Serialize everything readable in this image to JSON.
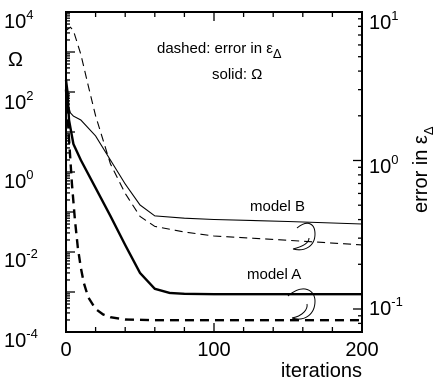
{
  "chart_data": {
    "type": "line",
    "title": "",
    "xlabel": "iterations",
    "ylabel_left": "Ω",
    "ylabel_right": "error in ε",
    "ylabel_right_subscript": "Δ",
    "xlim": [
      0,
      200
    ],
    "ylim_left": [
      0.0001,
      10000
    ],
    "ylim_right": [
      0.07,
      10
    ],
    "yscale_left": "log",
    "yscale_right": "log",
    "grid": false,
    "x_ticks": [
      0,
      100,
      200
    ],
    "y_left_ticks": [
      {
        "base": "10",
        "exp": "-4",
        "value": 0.0001
      },
      {
        "base": "10",
        "exp": "-2",
        "value": 0.01
      },
      {
        "base": "10",
        "exp": "0",
        "value": 1
      },
      {
        "base": "10",
        "exp": "2",
        "value": 100
      },
      {
        "base": "10",
        "exp": "4",
        "value": 10000
      }
    ],
    "y_right_ticks": [
      {
        "base": "10",
        "exp": "-1",
        "value": 0.1
      },
      {
        "base": "10",
        "exp": "0",
        "value": 1
      },
      {
        "base": "10",
        "exp": "1",
        "value": 10
      }
    ],
    "annotations": {
      "legend_line1": "dashed: error in ε",
      "legend_line1_subscript": "Δ",
      "legend_line2": "solid: Ω",
      "model_b": "model B",
      "model_a": "model A"
    },
    "series": [
      {
        "name": "model A",
        "quantity": "Ω",
        "style": "solid",
        "weight": "thick",
        "axis": "left",
        "x": [
          0,
          1,
          2,
          5,
          10,
          20,
          30,
          40,
          50,
          60,
          70,
          80,
          100,
          150,
          200
        ],
        "y": [
          200,
          100,
          20,
          5,
          2,
          0.4,
          0.08,
          0.015,
          0.003,
          0.0012,
          0.00095,
          0.0009,
          0.00088,
          0.00088,
          0.00088
        ]
      },
      {
        "name": "model A",
        "quantity": "error in εΔ",
        "style": "dashed",
        "weight": "thick",
        "axis": "right",
        "x": [
          0,
          2,
          4,
          6,
          8,
          10,
          12,
          15,
          20,
          25,
          30,
          40,
          60,
          100,
          150,
          200
        ],
        "y": [
          3.0,
          1.4,
          0.7,
          0.4,
          0.26,
          0.19,
          0.15,
          0.12,
          0.1,
          0.092,
          0.088,
          0.085,
          0.084,
          0.084,
          0.084,
          0.084
        ]
      },
      {
        "name": "model B",
        "quantity": "Ω",
        "style": "solid",
        "weight": "thin",
        "axis": "left",
        "x": [
          0,
          1,
          2,
          3,
          5,
          10,
          20,
          30,
          40,
          50,
          60,
          80,
          100,
          150,
          200
        ],
        "y": [
          300,
          80,
          40,
          30,
          25,
          20,
          8,
          2,
          0.5,
          0.15,
          0.08,
          0.07,
          0.065,
          0.058,
          0.05
        ]
      },
      {
        "name": "model B",
        "quantity": "error in εΔ",
        "style": "dashed",
        "weight": "thin",
        "axis": "right",
        "x": [
          0,
          3,
          5,
          10,
          15,
          20,
          30,
          40,
          50,
          60,
          80,
          100,
          150,
          200
        ],
        "y": [
          7.5,
          7.9,
          7.5,
          5.2,
          3.2,
          2.0,
          0.95,
          0.6,
          0.42,
          0.36,
          0.33,
          0.31,
          0.29,
          0.27
        ]
      }
    ]
  }
}
